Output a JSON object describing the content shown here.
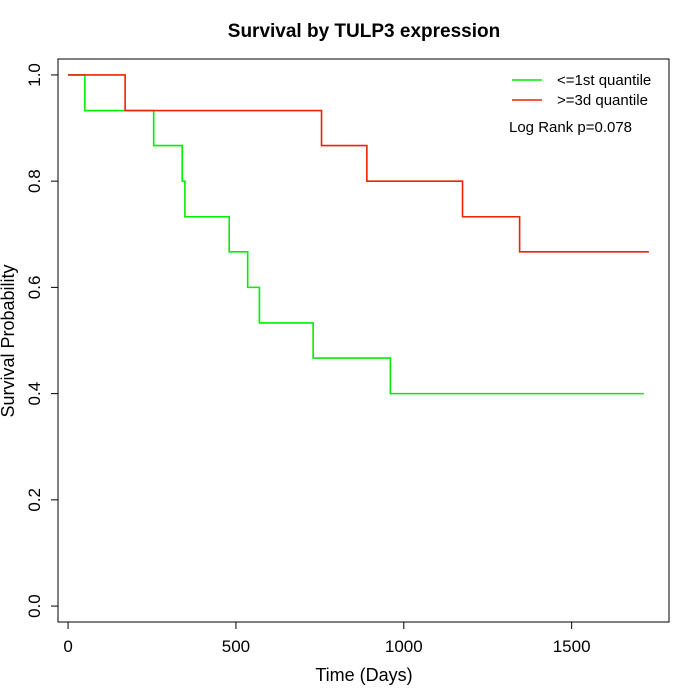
{
  "chart_data": {
    "type": "line",
    "step": true,
    "title": "Survival by TULP3 expression",
    "xlabel": "Time (Days)",
    "ylabel": "Survival Probability",
    "xlim": [
      -30,
      1790
    ],
    "ylim": [
      -0.03,
      1.03
    ],
    "xticks": [
      0,
      500,
      1000,
      1500
    ],
    "yticks": [
      0.0,
      0.2,
      0.4,
      0.6,
      0.8,
      1.0
    ],
    "xtick_labels": [
      "0",
      "500",
      "1000",
      "1500"
    ],
    "ytick_labels": [
      "0.0",
      "0.2",
      "0.4",
      "0.6",
      "0.8",
      "1.0"
    ],
    "grid": false,
    "legend_position": "top-right",
    "annotation": "Log Rank p=0.078",
    "series": [
      {
        "name": "<=1st quantile",
        "color": "#00ee00",
        "x": [
          0,
          50,
          255,
          340,
          348,
          480,
          535,
          570,
          730,
          960,
          1715
        ],
        "y": [
          1.0,
          0.933,
          0.867,
          0.8,
          0.733,
          0.667,
          0.6,
          0.533,
          0.467,
          0.4,
          0.4
        ]
      },
      {
        "name": ">=3d quantile",
        "color": "#ee2200",
        "x": [
          0,
          170,
          755,
          890,
          1175,
          1345,
          1730
        ],
        "y": [
          1.0,
          0.933,
          0.867,
          0.8,
          0.733,
          0.667,
          0.667
        ]
      }
    ]
  }
}
